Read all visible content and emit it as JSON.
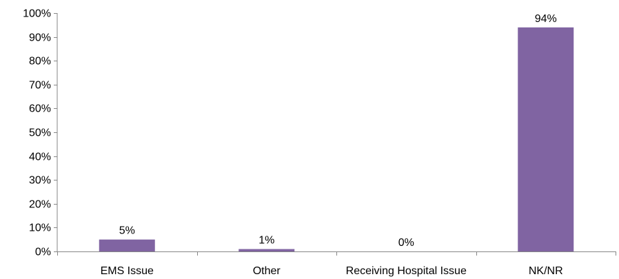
{
  "chart_data": {
    "type": "bar",
    "title": "",
    "xlabel": "",
    "ylabel": "",
    "categories": [
      "EMS Issue",
      "Other",
      "Receiving Hospital Issue",
      "NK/NR"
    ],
    "values": [
      5,
      1,
      0,
      94
    ],
    "data_labels": [
      "5%",
      "1%",
      "0%",
      "94%"
    ],
    "ylim": [
      0,
      100
    ],
    "yticks": [
      0,
      10,
      20,
      30,
      40,
      50,
      60,
      70,
      80,
      90,
      100
    ],
    "ytick_labels": [
      "0%",
      "10%",
      "20%",
      "30%",
      "40%",
      "50%",
      "60%",
      "70%",
      "80%",
      "90%",
      "100%"
    ],
    "grid": false,
    "legend": "none",
    "bar_color": "#8064A2",
    "axis_color": "#868686"
  }
}
